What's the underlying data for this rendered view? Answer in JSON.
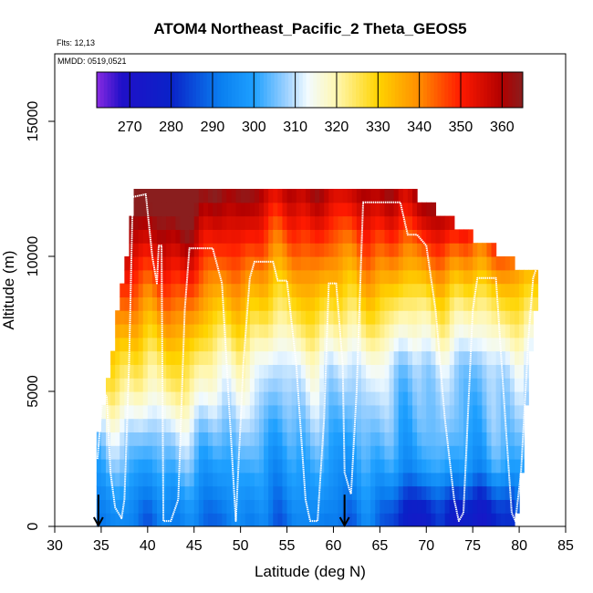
{
  "chart_data": {
    "type": "heatmap",
    "title": "ATOM4 Northeast_Pacific_2 Theta_GEOS5",
    "annotations": {
      "flights": "Flts: 12,13",
      "dates": "MMDD: 0519,0521"
    },
    "xlabel": "Latitude (deg N)",
    "ylabel": "Altitude (m)",
    "xlim": [
      30,
      85
    ],
    "ylim": [
      0,
      17500
    ],
    "x_ticks": [
      "30",
      "35",
      "40",
      "45",
      "50",
      "55",
      "60",
      "65",
      "70",
      "75",
      "80",
      "85"
    ],
    "y_ticks": [
      "0",
      "5000",
      "10000",
      "15000"
    ],
    "colorbar": {
      "range": [
        262,
        365
      ],
      "ticks": [
        "270",
        "280",
        "290",
        "300",
        "310",
        "320",
        "330",
        "340",
        "350",
        "360"
      ],
      "stops": [
        {
          "v": 262,
          "c": "#8a2be2"
        },
        {
          "v": 268,
          "c": "#2010c8"
        },
        {
          "v": 280,
          "c": "#0a22c8"
        },
        {
          "v": 292,
          "c": "#0a7ff0"
        },
        {
          "v": 300,
          "c": "#1ea0ff"
        },
        {
          "v": 308,
          "c": "#9fd2ff"
        },
        {
          "v": 313,
          "c": "#f2fbff"
        },
        {
          "v": 320,
          "c": "#fff7b0"
        },
        {
          "v": 330,
          "c": "#ffd400"
        },
        {
          "v": 340,
          "c": "#ff8c00"
        },
        {
          "v": 350,
          "c": "#ff1a00"
        },
        {
          "v": 360,
          "c": "#b00000"
        },
        {
          "v": 365,
          "c": "#8a1e1e"
        }
      ]
    },
    "field": {
      "lat_range": [
        34.5,
        82
      ],
      "alt_step": 500,
      "top_alt_by_lat": [
        [
          34.5,
          2500
        ],
        [
          35.5,
          5000
        ],
        [
          36.5,
          7000
        ],
        [
          37,
          8500
        ],
        [
          37.5,
          9500
        ],
        [
          38,
          10000
        ],
        [
          38.5,
          12500
        ],
        [
          68.5,
          12500
        ],
        [
          69,
          12000
        ],
        [
          71,
          11500
        ],
        [
          73,
          11000
        ],
        [
          75,
          10500
        ],
        [
          77.5,
          10000
        ],
        [
          79.5,
          9500
        ],
        [
          81.5,
          9500
        ],
        [
          82,
          9500
        ]
      ],
      "bottom_alt_by_lat": [
        [
          34.5,
          0
        ],
        [
          79.5,
          0
        ],
        [
          80,
          1500
        ],
        [
          80.5,
          3000
        ],
        [
          81,
          6500
        ],
        [
          81.5,
          7000
        ],
        [
          82,
          9000
        ]
      ],
      "lat_extent_by_alt": [
        [
          0,
          34.6,
          79.8
        ],
        [
          2500,
          34.6,
          80.2
        ],
        [
          5000,
          35.3,
          80.3
        ],
        [
          7000,
          36.3,
          81.2
        ],
        [
          8500,
          37,
          81.5
        ],
        [
          9500,
          37.5,
          82
        ],
        [
          10000,
          38,
          77.5
        ],
        [
          10500,
          38.5,
          75
        ],
        [
          11000,
          38.5,
          73
        ],
        [
          11500,
          38.5,
          71
        ],
        [
          12000,
          38.5,
          69
        ],
        [
          12500,
          38.5,
          68.5
        ]
      ]
    },
    "flight_track": [
      [
        34.6,
        2500
      ],
      [
        35.2,
        5000
      ],
      [
        35.6,
        4800
      ],
      [
        36,
        2000
      ],
      [
        36.5,
        700
      ],
      [
        37.2,
        300
      ],
      [
        37.5,
        1000
      ],
      [
        38,
        6000
      ],
      [
        38.4,
        12200
      ],
      [
        39.8,
        12300
      ],
      [
        40.5,
        10000
      ],
      [
        41,
        9000
      ],
      [
        41.2,
        10400
      ],
      [
        41.5,
        10400
      ],
      [
        41.7,
        200
      ],
      [
        42.5,
        200
      ],
      [
        43.3,
        1000
      ],
      [
        44,
        8000
      ],
      [
        44.5,
        10300
      ],
      [
        47,
        10300
      ],
      [
        48,
        9000
      ],
      [
        49.5,
        200
      ],
      [
        50.3,
        6000
      ],
      [
        51,
        9200
      ],
      [
        51.5,
        9800
      ],
      [
        53.5,
        9800
      ],
      [
        54,
        9100
      ],
      [
        55,
        9100
      ],
      [
        56,
        6000
      ],
      [
        57,
        1000
      ],
      [
        57.5,
        200
      ],
      [
        58.3,
        200
      ],
      [
        59,
        4000
      ],
      [
        59.5,
        9000
      ],
      [
        60.3,
        9000
      ],
      [
        61,
        6000
      ],
      [
        61.2,
        2000
      ],
      [
        61.7,
        1400
      ],
      [
        61.9,
        1200
      ],
      [
        62.5,
        5000
      ],
      [
        63.2,
        12000
      ],
      [
        67.2,
        12000
      ],
      [
        68,
        10800
      ],
      [
        69,
        10800
      ],
      [
        70,
        10400
      ],
      [
        71,
        8000
      ],
      [
        72,
        4000
      ],
      [
        73,
        1000
      ],
      [
        73.5,
        200
      ],
      [
        74,
        500
      ],
      [
        75,
        8000
      ],
      [
        75.5,
        9200
      ],
      [
        77.5,
        9200
      ],
      [
        78.5,
        4000
      ],
      [
        79.2,
        500
      ],
      [
        79.6,
        200
      ],
      [
        80.2,
        2000
      ],
      [
        81,
        7000
      ],
      [
        81.5,
        9200
      ],
      [
        81.8,
        9500
      ]
    ],
    "markers": [
      {
        "lat": 34.7,
        "alt": 500
      },
      {
        "lat": 61.2,
        "alt": 500
      }
    ]
  }
}
